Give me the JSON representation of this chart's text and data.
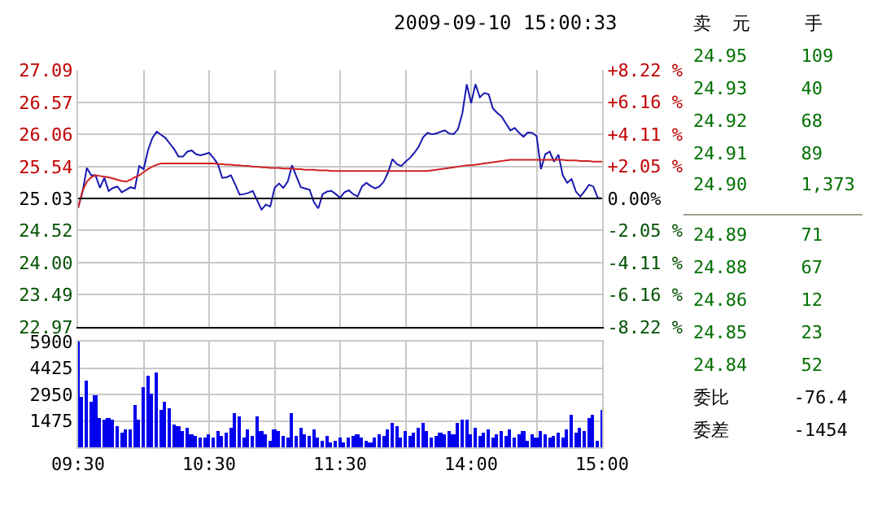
{
  "chart_data": [
    {
      "type": "line",
      "title": "2009-09-10 15:00:33",
      "series": [
        {
          "color": "#1818b0",
          "values": [
            24.88,
            25.13,
            25.52,
            25.4,
            25.4,
            25.2,
            25.36,
            25.15,
            25.2,
            25.22,
            25.13,
            25.17,
            25.21,
            25.19,
            25.55,
            25.5,
            25.8,
            26.0,
            26.1,
            26.05,
            26.0,
            25.91,
            25.82,
            25.7,
            25.7,
            25.78,
            25.8,
            25.74,
            25.72,
            25.74,
            25.76,
            25.68,
            25.58,
            25.36,
            25.37,
            25.4,
            25.25,
            25.09,
            25.1,
            25.12,
            25.15,
            25.0,
            24.85,
            24.93,
            24.9,
            25.2,
            25.27,
            25.2,
            25.3,
            25.56,
            25.38,
            25.21,
            25.19,
            25.17,
            24.97,
            24.87,
            25.1,
            25.14,
            25.15,
            25.1,
            25.04,
            25.13,
            25.16,
            25.1,
            25.06,
            25.22,
            25.28,
            25.23,
            25.19,
            25.22,
            25.3,
            25.45,
            25.66,
            25.58,
            25.55,
            25.62,
            25.68,
            25.76,
            25.86,
            26.01,
            26.08,
            26.06,
            26.07,
            26.1,
            26.12,
            26.07,
            26.06,
            26.14,
            26.4,
            26.86,
            26.56,
            26.86,
            26.65,
            26.72,
            26.7,
            26.47,
            26.4,
            26.34,
            26.23,
            26.12,
            26.16,
            26.08,
            26.02,
            26.09,
            26.08,
            26.03,
            25.5,
            25.74,
            25.78,
            25.62,
            25.73,
            25.4,
            25.28,
            25.34,
            25.14,
            25.06,
            25.15,
            25.25,
            25.22,
            25.04,
            25.03
          ]
        },
        {
          "color": "#d02020",
          "values": [
            24.88,
            25.15,
            25.3,
            25.37,
            25.4,
            25.39,
            25.38,
            25.37,
            25.35,
            25.33,
            25.31,
            25.3,
            25.33,
            25.37,
            25.4,
            25.45,
            25.5,
            25.54,
            25.57,
            25.59,
            25.59,
            25.59,
            25.59,
            25.59,
            25.59,
            25.59,
            25.59,
            25.59,
            25.59,
            25.59,
            25.59,
            25.59,
            25.58,
            25.58,
            25.57,
            25.57,
            25.56,
            25.56,
            25.55,
            25.55,
            25.54,
            25.54,
            25.53,
            25.53,
            25.52,
            25.52,
            25.52,
            25.51,
            25.51,
            25.51,
            25.5,
            25.5,
            25.49,
            25.49,
            25.49,
            25.48,
            25.48,
            25.48,
            25.47,
            25.47,
            25.47,
            25.47,
            25.47,
            25.47,
            25.47,
            25.47,
            25.47,
            25.47,
            25.47,
            25.47,
            25.47,
            25.47,
            25.47,
            25.47,
            25.47,
            25.47,
            25.47,
            25.47,
            25.47,
            25.47,
            25.47,
            25.48,
            25.49,
            25.5,
            25.51,
            25.52,
            25.53,
            25.54,
            25.55,
            25.56,
            25.56,
            25.57,
            25.58,
            25.59,
            25.6,
            25.61,
            25.62,
            25.63,
            25.64,
            25.65,
            25.65,
            25.65,
            25.65,
            25.65,
            25.65,
            25.65,
            25.65,
            25.65,
            25.65,
            25.65,
            25.65,
            25.65,
            25.64,
            25.64,
            25.64,
            25.63,
            25.63,
            25.63,
            25.62,
            25.62,
            25.62
          ]
        }
      ],
      "ylim": [
        22.97,
        27.09
      ],
      "yticks": [
        {
          "value": 22.97,
          "label": "22.97"
        },
        {
          "value": 23.49,
          "label": "23.49"
        },
        {
          "value": 24.0,
          "label": "24.00"
        },
        {
          "value": 24.52,
          "label": "24.52"
        },
        {
          "value": 25.03,
          "label": "25.03"
        },
        {
          "value": 25.54,
          "label": "25.54"
        },
        {
          "value": 26.06,
          "label": "26.06"
        },
        {
          "value": 26.57,
          "label": "26.57"
        },
        {
          "value": 27.09,
          "label": "27.09"
        }
      ],
      "y2lim": [
        -8.22,
        8.22
      ],
      "y2ticks": [
        {
          "value": -8.22,
          "label": "-8.22 %"
        },
        {
          "value": -6.16,
          "label": "-6.16 %"
        },
        {
          "value": -4.11,
          "label": "-4.11 %"
        },
        {
          "value": -2.05,
          "label": "-2.05 %"
        },
        {
          "value": 0,
          "label": "0.00%"
        },
        {
          "value": 2.05,
          "label": "+2.05 %"
        },
        {
          "value": 4.11,
          "label": "+4.11 %"
        },
        {
          "value": 6.16,
          "label": "+6.16 %"
        },
        {
          "value": 8.22,
          "label": "+8.22 %"
        }
      ],
      "ref_lines": [
        {
          "axis": "y",
          "value": 25.03,
          "color": "#000000"
        }
      ],
      "grid": true,
      "marker": "none",
      "tick_labels": "y"
    },
    {
      "type": "bar",
      "categories": [
        "09:30",
        null,
        null,
        null,
        null,
        null,
        null,
        null,
        null,
        null,
        null,
        null,
        null,
        null,
        null,
        null,
        null,
        null,
        null,
        null,
        null,
        null,
        null,
        null,
        null,
        null,
        null,
        null,
        null,
        null,
        "10:30",
        null,
        null,
        null,
        null,
        null,
        null,
        null,
        null,
        null,
        null,
        null,
        null,
        null,
        null,
        null,
        null,
        null,
        null,
        null,
        null,
        null,
        null,
        null,
        null,
        null,
        null,
        null,
        null,
        null,
        "11:30",
        null,
        null,
        null,
        null,
        null,
        null,
        null,
        null,
        null,
        null,
        null,
        null,
        null,
        null,
        null,
        null,
        null,
        null,
        null,
        null,
        null,
        null,
        null,
        null,
        null,
        null,
        null,
        null,
        null,
        "14:00",
        null,
        null,
        null,
        null,
        null,
        null,
        null,
        null,
        null,
        null,
        null,
        null,
        null,
        null,
        null,
        null,
        null,
        null,
        null,
        null,
        null,
        null,
        null,
        null,
        null,
        null,
        null,
        null,
        null,
        "15:00"
      ],
      "series": [
        {
          "color": "#0000ee",
          "values": [
            5900,
            2800,
            3700,
            2500,
            2900,
            1600,
            1500,
            1600,
            1500,
            1200,
            800,
            1000,
            1000,
            2400,
            1500,
            3400,
            4000,
            3000,
            4200,
            2100,
            2500,
            2200,
            1300,
            1200,
            900,
            1100,
            700,
            600,
            500,
            500,
            700,
            500,
            900,
            600,
            800,
            1100,
            1900,
            1700,
            500,
            1000,
            600,
            1700,
            900,
            700,
            400,
            1000,
            900,
            600,
            500,
            1900,
            600,
            1100,
            700,
            600,
            1000,
            500,
            400,
            600,
            300,
            400,
            500,
            300,
            500,
            600,
            700,
            500,
            400,
            300,
            500,
            700,
            600,
            1000,
            1400,
            1200,
            500,
            900,
            600,
            800,
            1100,
            1400,
            900,
            500,
            600,
            800,
            700,
            900,
            700,
            1400,
            1500,
            1500,
            700,
            1100,
            600,
            800,
            1000,
            500,
            700,
            900,
            600,
            1000,
            500,
            700,
            900,
            400,
            700,
            500,
            900,
            700,
            500,
            600,
            800,
            500,
            1000,
            1800,
            800,
            1100,
            900,
            1600,
            1800,
            400,
            2100
          ]
        }
      ],
      "ylim": [
        0,
        5900
      ],
      "yticks": [
        {
          "value": 0,
          "label": null
        },
        1475,
        2950,
        4425,
        5900
      ],
      "grid": true
    },
    {
      "type": "other",
      "annotations": [
        "卖  元     手",
        "24.95     109",
        "24.93     40",
        "24.92     68",
        "24.91     89",
        "24.90     1,373",
        "24.89     71",
        "24.88     67",
        "24.86     12",
        "24.85     23",
        "24.84     52",
        "委比      -76.4",
        "委差      -1454"
      ]
    }
  ]
}
